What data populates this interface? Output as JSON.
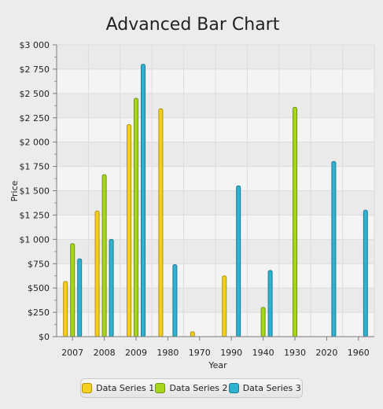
{
  "colors": {
    "series_1": "#f3cf1f",
    "series_2": "#a6d51e",
    "series_3": "#2fb1d0",
    "series_1_stroke": "#b3920a",
    "series_2_stroke": "#6f9611",
    "series_3_stroke": "#1a7d97"
  },
  "chart_data": {
    "type": "bar",
    "title": "Advanced Bar Chart",
    "xlabel": "Year",
    "ylabel": "Price",
    "ylim": [
      0,
      3000
    ],
    "yticks": [
      "$0",
      "$250",
      "$500",
      "$750",
      "$1 000",
      "$1 250",
      "$1 500",
      "$1 750",
      "$2 000",
      "$2 250",
      "$2 500",
      "$2 750",
      "$3 000"
    ],
    "categories": [
      "2007",
      "2008",
      "2009",
      "1980",
      "1970",
      "1990",
      "1940",
      "1930",
      "2020",
      "1960"
    ],
    "grid": true,
    "legend_position": "bottom",
    "series": [
      {
        "name": "Data Series 1",
        "values": [
          567,
          1292,
          2180,
          2342,
          50,
          625,
          null,
          null,
          null,
          null
        ]
      },
      {
        "name": "Data Series 2",
        "values": [
          956,
          1665,
          2450,
          null,
          null,
          null,
          300,
          2358,
          null,
          null
        ]
      },
      {
        "name": "Data Series 3",
        "values": [
          800,
          1000,
          2800,
          740,
          null,
          1550,
          680,
          null,
          1800,
          1300
        ]
      }
    ]
  }
}
